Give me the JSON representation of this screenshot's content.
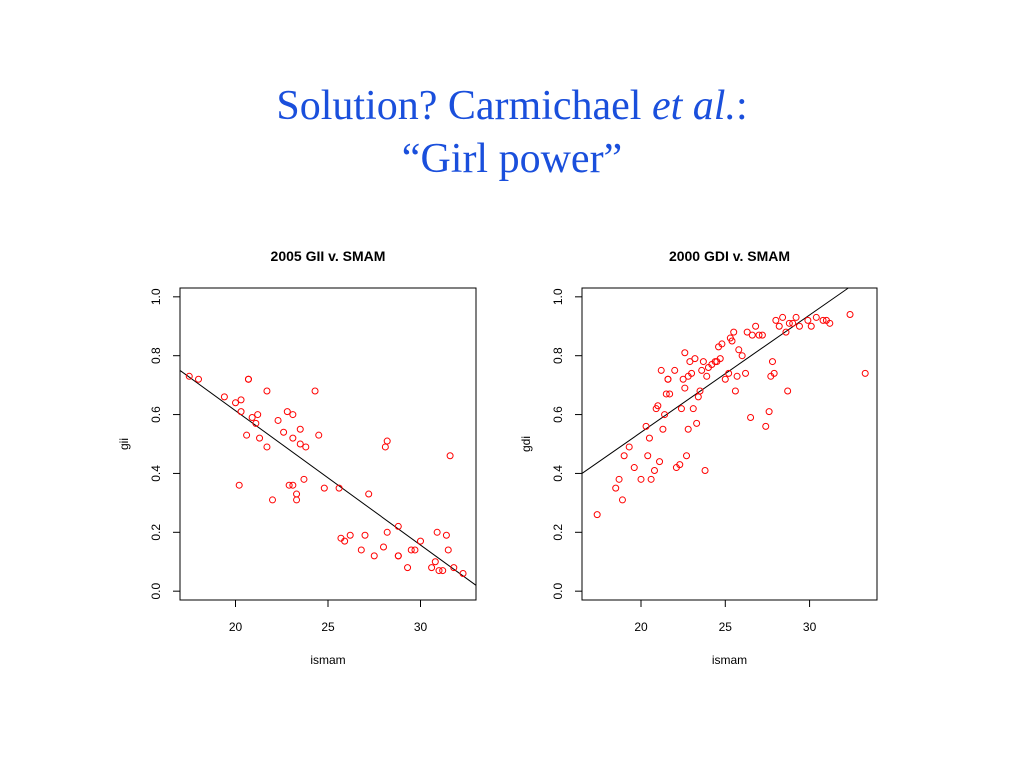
{
  "slide": {
    "title_line1_pre": "Solution? Carmichael ",
    "title_line1_italic": "et al.",
    "title_line1_post": ":",
    "title_line2": "“Girl power”"
  },
  "colors": {
    "title": "#1a4fdc",
    "points": "#ff0000",
    "line": "#000000"
  },
  "chart_data": [
    {
      "type": "scatter",
      "title": "2005 GII v. SMAM",
      "xlabel": "ismam",
      "ylabel": "gii",
      "xlim": [
        17,
        33
      ],
      "ylim": [
        -0.03,
        1.03
      ],
      "xticks": [
        20,
        25,
        30
      ],
      "yticks": [
        0.0,
        0.2,
        0.4,
        0.6,
        0.8,
        1.0
      ],
      "ytick_labels": [
        "0.0",
        "0.2",
        "0.4",
        "0.6",
        "0.8",
        "1.0"
      ],
      "regression_line": {
        "x": [
          17,
          33
        ],
        "y": [
          0.75,
          0.02
        ]
      },
      "points": [
        [
          17.5,
          0.73
        ],
        [
          18.0,
          0.72
        ],
        [
          19.4,
          0.66
        ],
        [
          20.0,
          0.64
        ],
        [
          20.2,
          0.36
        ],
        [
          20.3,
          0.65
        ],
        [
          20.3,
          0.61
        ],
        [
          20.6,
          0.53
        ],
        [
          20.7,
          0.72
        ],
        [
          20.7,
          0.72
        ],
        [
          20.9,
          0.59
        ],
        [
          21.1,
          0.57
        ],
        [
          21.2,
          0.6
        ],
        [
          21.3,
          0.52
        ],
        [
          21.7,
          0.49
        ],
        [
          21.7,
          0.68
        ],
        [
          22.0,
          0.31
        ],
        [
          22.3,
          0.58
        ],
        [
          22.6,
          0.54
        ],
        [
          22.8,
          0.61
        ],
        [
          22.9,
          0.36
        ],
        [
          23.1,
          0.6
        ],
        [
          23.1,
          0.36
        ],
        [
          23.1,
          0.52
        ],
        [
          23.3,
          0.33
        ],
        [
          23.3,
          0.31
        ],
        [
          23.5,
          0.5
        ],
        [
          23.5,
          0.55
        ],
        [
          23.7,
          0.38
        ],
        [
          23.8,
          0.49
        ],
        [
          24.3,
          0.68
        ],
        [
          24.5,
          0.53
        ],
        [
          24.8,
          0.35
        ],
        [
          25.6,
          0.35
        ],
        [
          25.7,
          0.18
        ],
        [
          25.9,
          0.17
        ],
        [
          26.2,
          0.19
        ],
        [
          26.8,
          0.14
        ],
        [
          27.0,
          0.19
        ],
        [
          27.2,
          0.33
        ],
        [
          27.5,
          0.12
        ],
        [
          28.0,
          0.15
        ],
        [
          28.1,
          0.49
        ],
        [
          28.2,
          0.51
        ],
        [
          28.2,
          0.2
        ],
        [
          28.8,
          0.12
        ],
        [
          28.8,
          0.12
        ],
        [
          28.8,
          0.22
        ],
        [
          29.3,
          0.08
        ],
        [
          29.5,
          0.14
        ],
        [
          29.7,
          0.14
        ],
        [
          30.0,
          0.17
        ],
        [
          30.6,
          0.08
        ],
        [
          30.8,
          0.1
        ],
        [
          30.9,
          0.2
        ],
        [
          31.0,
          0.07
        ],
        [
          31.2,
          0.07
        ],
        [
          31.4,
          0.19
        ],
        [
          31.5,
          0.14
        ],
        [
          31.6,
          0.46
        ],
        [
          31.8,
          0.08
        ],
        [
          32.3,
          0.06
        ]
      ]
    },
    {
      "type": "scatter",
      "title": "2000 GDI v. SMAM",
      "xlabel": "ismam",
      "ylabel": "gdi",
      "xlim": [
        16.5,
        34.0
      ],
      "ylim": [
        -0.03,
        1.03
      ],
      "xticks": [
        20,
        25,
        30
      ],
      "yticks": [
        0.0,
        0.2,
        0.4,
        0.6,
        0.8,
        1.0
      ],
      "ytick_labels": [
        "0.0",
        "0.2",
        "0.4",
        "0.6",
        "0.8",
        "1.0"
      ],
      "regression_line": {
        "x": [
          16.5,
          32.3
        ],
        "y": [
          0.4,
          1.03
        ]
      },
      "points": [
        [
          17.4,
          0.26
        ],
        [
          18.5,
          0.35
        ],
        [
          18.7,
          0.38
        ],
        [
          18.9,
          0.31
        ],
        [
          19.0,
          0.46
        ],
        [
          19.3,
          0.49
        ],
        [
          19.6,
          0.42
        ],
        [
          20.0,
          0.38
        ],
        [
          20.3,
          0.56
        ],
        [
          20.4,
          0.46
        ],
        [
          20.5,
          0.52
        ],
        [
          20.6,
          0.38
        ],
        [
          20.8,
          0.41
        ],
        [
          20.9,
          0.62
        ],
        [
          21.0,
          0.63
        ],
        [
          21.1,
          0.44
        ],
        [
          21.2,
          0.75
        ],
        [
          21.3,
          0.55
        ],
        [
          21.4,
          0.6
        ],
        [
          21.5,
          0.67
        ],
        [
          21.6,
          0.72
        ],
        [
          21.6,
          0.72
        ],
        [
          21.7,
          0.67
        ],
        [
          22.0,
          0.75
        ],
        [
          22.1,
          0.42
        ],
        [
          22.3,
          0.43
        ],
        [
          22.4,
          0.62
        ],
        [
          22.5,
          0.72
        ],
        [
          22.6,
          0.81
        ],
        [
          22.6,
          0.69
        ],
        [
          22.7,
          0.46
        ],
        [
          22.8,
          0.55
        ],
        [
          22.8,
          0.73
        ],
        [
          22.9,
          0.78
        ],
        [
          23.0,
          0.74
        ],
        [
          23.1,
          0.62
        ],
        [
          23.2,
          0.79
        ],
        [
          23.3,
          0.57
        ],
        [
          23.4,
          0.66
        ],
        [
          23.5,
          0.68
        ],
        [
          23.6,
          0.75
        ],
        [
          23.7,
          0.78
        ],
        [
          23.8,
          0.41
        ],
        [
          23.9,
          0.73
        ],
        [
          24.0,
          0.76
        ],
        [
          24.2,
          0.77
        ],
        [
          24.4,
          0.78
        ],
        [
          24.5,
          0.78
        ],
        [
          24.6,
          0.83
        ],
        [
          24.7,
          0.79
        ],
        [
          24.8,
          0.84
        ],
        [
          25.0,
          0.72
        ],
        [
          25.2,
          0.74
        ],
        [
          25.3,
          0.86
        ],
        [
          25.4,
          0.85
        ],
        [
          25.5,
          0.88
        ],
        [
          25.6,
          0.68
        ],
        [
          25.7,
          0.73
        ],
        [
          25.8,
          0.82
        ],
        [
          26.0,
          0.8
        ],
        [
          26.2,
          0.74
        ],
        [
          26.3,
          0.88
        ],
        [
          26.5,
          0.59
        ],
        [
          26.6,
          0.87
        ],
        [
          26.8,
          0.9
        ],
        [
          27.0,
          0.87
        ],
        [
          27.2,
          0.87
        ],
        [
          27.4,
          0.56
        ],
        [
          27.6,
          0.61
        ],
        [
          27.7,
          0.73
        ],
        [
          27.8,
          0.78
        ],
        [
          27.9,
          0.74
        ],
        [
          28.0,
          0.92
        ],
        [
          28.2,
          0.9
        ],
        [
          28.4,
          0.93
        ],
        [
          28.6,
          0.88
        ],
        [
          28.7,
          0.68
        ],
        [
          28.8,
          0.91
        ],
        [
          29.0,
          0.91
        ],
        [
          29.2,
          0.93
        ],
        [
          29.4,
          0.9
        ],
        [
          29.9,
          0.92
        ],
        [
          30.1,
          0.9
        ],
        [
          30.4,
          0.93
        ],
        [
          30.8,
          0.92
        ],
        [
          31.0,
          0.92
        ],
        [
          31.2,
          0.91
        ],
        [
          32.4,
          0.94
        ],
        [
          33.3,
          0.74
        ]
      ]
    }
  ]
}
